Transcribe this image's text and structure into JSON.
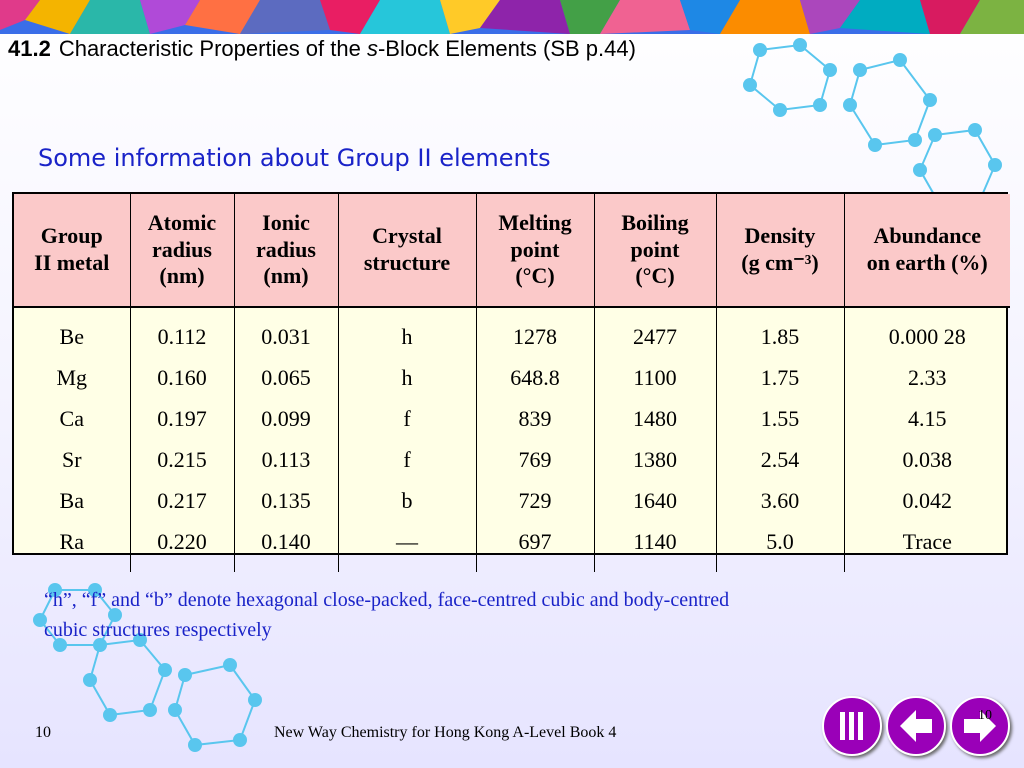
{
  "header": {
    "section_number": "41.2",
    "title_before": "Characteristic Properties of the ",
    "title_italic": "s",
    "title_after": "-Block Elements (SB p.44)"
  },
  "subtitle": "Some information about Group II elements",
  "table": {
    "headers": [
      {
        "lines": [
          "Group",
          "II metal"
        ]
      },
      {
        "lines": [
          "Atomic",
          "radius",
          "(nm)"
        ]
      },
      {
        "lines": [
          "Ionic",
          "radius",
          "(nm)"
        ]
      },
      {
        "lines": [
          "Crystal",
          "structure"
        ]
      },
      {
        "lines": [
          "Melting",
          "point",
          "(°C)"
        ]
      },
      {
        "lines": [
          "Boiling",
          "point",
          "(°C)"
        ]
      },
      {
        "lines": [
          "Density",
          "(g cm⁻³)"
        ]
      },
      {
        "lines": [
          "Abundance",
          "on earth (%)"
        ]
      }
    ],
    "columns": [
      [
        "Be",
        "Mg",
        "Ca",
        "Sr",
        "Ba",
        "Ra"
      ],
      [
        "0.112",
        "0.160",
        "0.197",
        "0.215",
        "0.217",
        "0.220"
      ],
      [
        "0.031",
        "0.065",
        "0.099",
        "0.113",
        "0.135",
        "0.140"
      ],
      [
        "h",
        "h",
        "f",
        "f",
        "b",
        "—"
      ],
      [
        "1278",
        "648.8",
        "839",
        "769",
        "729",
        "697"
      ],
      [
        "2477",
        "1100",
        "1480",
        "1380",
        "1640",
        "1140"
      ],
      [
        "1.85",
        "1.75",
        "1.55",
        "2.54",
        "3.60",
        "5.0"
      ],
      [
        "0.000 28",
        "2.33",
        "4.15",
        "0.038",
        "0.042",
        "Trace"
      ]
    ]
  },
  "note": "“h”, “f” and “b” denote hexagonal close-packed, face-centred cubic and body-centred cubic structures respectively",
  "footer": {
    "page_number": "10",
    "book_title": "New Way Chemistry for Hong Kong A-Level Book 4",
    "corner_page": "10"
  },
  "nav": {
    "buttons": [
      "menu-icon",
      "back-arrow-icon",
      "forward-arrow-icon"
    ],
    "button_color": "#9a00b8"
  },
  "colors": {
    "header_fill": "#fbc9c9",
    "body_fill": "#ffffe6",
    "accent_text": "#1a23c8"
  }
}
